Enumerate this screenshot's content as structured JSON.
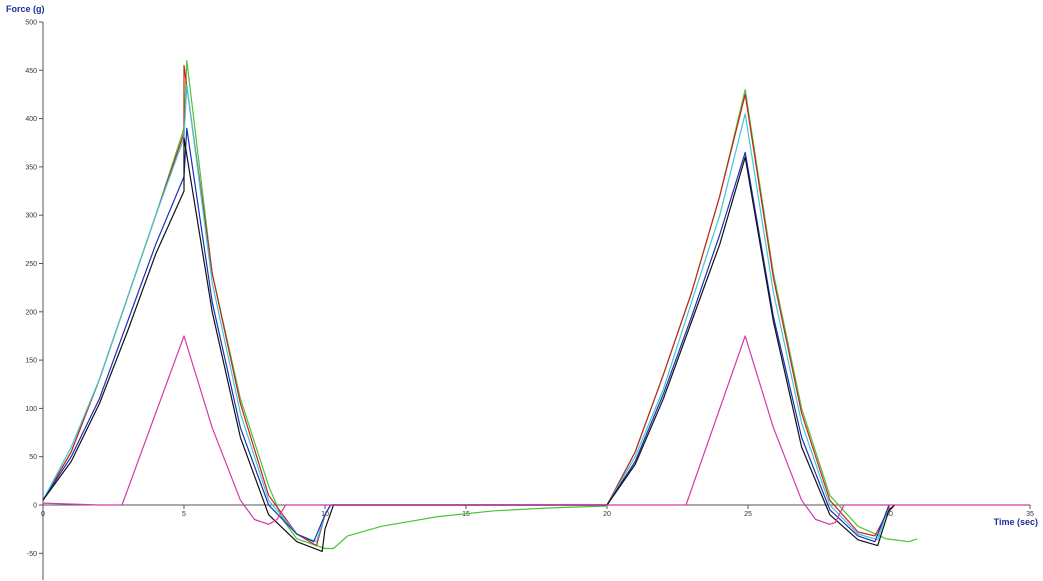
{
  "chart_data": {
    "type": "line",
    "xlabel": "Time (sec)",
    "ylabel": "Force (g)",
    "xlim": [
      0,
      35
    ],
    "ylim": [
      -75,
      500
    ],
    "x_ticks": [
      0,
      5,
      10,
      15,
      20,
      25,
      30,
      35
    ],
    "y_ticks": [
      -50,
      0,
      50,
      100,
      150,
      200,
      250,
      300,
      350,
      400,
      450,
      500
    ],
    "x_tick_labels": [
      "0",
      "5",
      "10",
      "15",
      "20",
      "25",
      "30",
      "35"
    ],
    "y_tick_labels": [
      "-50",
      "0",
      "50",
      "100",
      "150",
      "200",
      "250",
      "300",
      "350",
      "400",
      "450",
      "500"
    ],
    "grid": false,
    "legend": "none",
    "series": [
      {
        "color": "#4cc33a",
        "points": [
          [
            0,
            5
          ],
          [
            1,
            55
          ],
          [
            2,
            130
          ],
          [
            3,
            215
          ],
          [
            4,
            300
          ],
          [
            5,
            390
          ],
          [
            5.1,
            460
          ],
          [
            6,
            240
          ],
          [
            7,
            110
          ],
          [
            8,
            20
          ],
          [
            8.5,
            -15
          ],
          [
            9,
            -35
          ],
          [
            10,
            -45
          ],
          [
            10.3,
            -45
          ],
          [
            10.8,
            -32
          ],
          [
            12,
            -22
          ],
          [
            14,
            -12
          ],
          [
            16,
            -6
          ],
          [
            18,
            -3
          ],
          [
            20,
            -1
          ],
          [
            21,
            55
          ],
          [
            22,
            135
          ],
          [
            23,
            220
          ],
          [
            24,
            320
          ],
          [
            24.9,
            430
          ],
          [
            25.9,
            240
          ],
          [
            26.9,
            100
          ],
          [
            27.9,
            10
          ],
          [
            28.9,
            -22
          ],
          [
            29.9,
            -35
          ],
          [
            30.7,
            -38
          ],
          [
            31,
            -35
          ]
        ]
      },
      {
        "color": "#cc2020",
        "points": [
          [
            0,
            5
          ],
          [
            1,
            55
          ],
          [
            2,
            130
          ],
          [
            3,
            215
          ],
          [
            4,
            300
          ],
          [
            5,
            385
          ],
          [
            5,
            455
          ],
          [
            6,
            240
          ],
          [
            7,
            105
          ],
          [
            8,
            10
          ],
          [
            9,
            -30
          ],
          [
            9.7,
            -42
          ],
          [
            10,
            -10
          ],
          [
            10.2,
            0
          ],
          [
            12,
            0
          ],
          [
            16,
            0
          ],
          [
            20,
            0
          ],
          [
            21,
            55
          ],
          [
            22,
            135
          ],
          [
            23,
            220
          ],
          [
            24,
            320
          ],
          [
            24.9,
            425
          ],
          [
            25.9,
            235
          ],
          [
            26.9,
            95
          ],
          [
            27.9,
            5
          ],
          [
            28.9,
            -28
          ],
          [
            29.5,
            -32
          ],
          [
            29.9,
            -10
          ],
          [
            30.2,
            0
          ]
        ]
      },
      {
        "color": "#40c8d8",
        "points": [
          [
            0,
            5
          ],
          [
            1,
            60
          ],
          [
            2,
            130
          ],
          [
            3,
            215
          ],
          [
            4,
            300
          ],
          [
            5,
            380
          ],
          [
            5.1,
            435
          ],
          [
            6,
            230
          ],
          [
            7,
            95
          ],
          [
            8,
            5
          ],
          [
            9,
            -30
          ],
          [
            9.7,
            -38
          ],
          [
            10,
            -10
          ],
          [
            10.2,
            0
          ],
          [
            20,
            0
          ],
          [
            21,
            50
          ],
          [
            22,
            120
          ],
          [
            23,
            210
          ],
          [
            24,
            300
          ],
          [
            24.9,
            405
          ],
          [
            25.9,
            220
          ],
          [
            26.9,
            85
          ],
          [
            27.9,
            0
          ],
          [
            28.9,
            -30
          ],
          [
            29.6,
            -36
          ],
          [
            30,
            0
          ]
        ]
      },
      {
        "color": "#1a2fb8",
        "points": [
          [
            0,
            5
          ],
          [
            1,
            50
          ],
          [
            2,
            110
          ],
          [
            3,
            190
          ],
          [
            4,
            270
          ],
          [
            5,
            340
          ],
          [
            5.1,
            390
          ],
          [
            6,
            210
          ],
          [
            7,
            80
          ],
          [
            8,
            0
          ],
          [
            9,
            -30
          ],
          [
            9.6,
            -38
          ],
          [
            10,
            -10
          ],
          [
            10.2,
            0
          ],
          [
            20,
            0
          ],
          [
            21,
            45
          ],
          [
            22,
            115
          ],
          [
            23,
            195
          ],
          [
            24,
            280
          ],
          [
            24.9,
            365
          ],
          [
            25.9,
            195
          ],
          [
            26.9,
            70
          ],
          [
            27.9,
            -5
          ],
          [
            28.9,
            -32
          ],
          [
            29.5,
            -38
          ],
          [
            30,
            0
          ]
        ]
      },
      {
        "color": "#111111",
        "points": [
          [
            0,
            5
          ],
          [
            1,
            45
          ],
          [
            2,
            105
          ],
          [
            3,
            180
          ],
          [
            4,
            260
          ],
          [
            5,
            325
          ],
          [
            5,
            380
          ],
          [
            6,
            200
          ],
          [
            7,
            70
          ],
          [
            8,
            -10
          ],
          [
            9,
            -38
          ],
          [
            9.9,
            -48
          ],
          [
            10,
            -25
          ],
          [
            10.3,
            0
          ],
          [
            12,
            0
          ],
          [
            16,
            0
          ],
          [
            20,
            0
          ],
          [
            21,
            42
          ],
          [
            22,
            110
          ],
          [
            23,
            190
          ],
          [
            24,
            270
          ],
          [
            24.9,
            360
          ],
          [
            25.9,
            190
          ],
          [
            26.9,
            60
          ],
          [
            27.9,
            -10
          ],
          [
            28.9,
            -36
          ],
          [
            29.6,
            -42
          ],
          [
            30,
            -5
          ],
          [
            30.2,
            0
          ]
        ]
      },
      {
        "color": "#d23aa8",
        "points": [
          [
            0,
            2
          ],
          [
            2,
            0
          ],
          [
            2.8,
            0
          ],
          [
            5,
            175
          ],
          [
            6,
            80
          ],
          [
            7,
            5
          ],
          [
            7.5,
            -15
          ],
          [
            8,
            -20
          ],
          [
            8.3,
            -15
          ],
          [
            8.6,
            0
          ],
          [
            20,
            0
          ],
          [
            22.8,
            0
          ],
          [
            24.9,
            175
          ],
          [
            25.9,
            80
          ],
          [
            26.9,
            5
          ],
          [
            27.4,
            -15
          ],
          [
            27.9,
            -20
          ],
          [
            28.1,
            -18
          ],
          [
            28.4,
            0
          ],
          [
            35,
            0
          ]
        ]
      }
    ]
  }
}
